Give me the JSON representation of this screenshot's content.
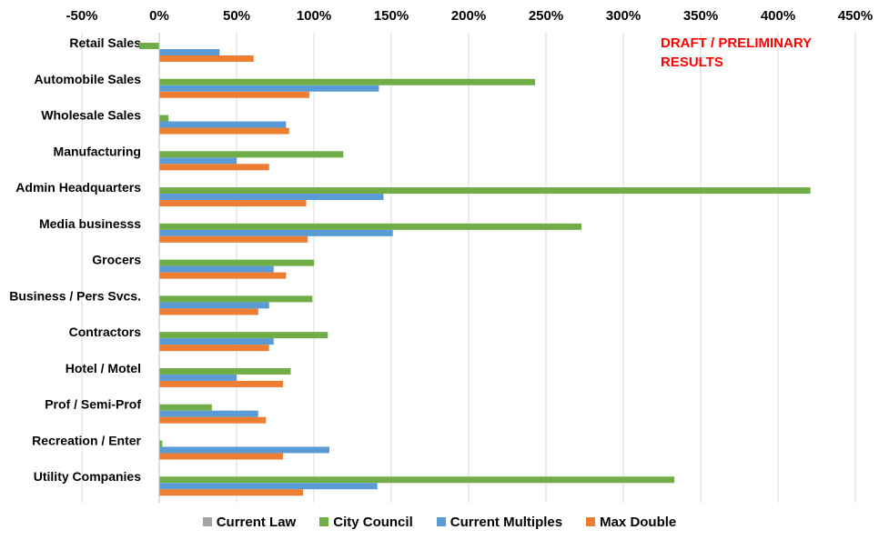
{
  "annotation": "DRAFT / PRELIMINARY RESULTS",
  "chart_data": {
    "type": "bar",
    "orientation": "horizontal",
    "x_ticks": [
      "-50%",
      "0%",
      "50%",
      "100%",
      "150%",
      "200%",
      "250%",
      "300%",
      "350%",
      "400%",
      "450%"
    ],
    "xlim": [
      -50,
      450
    ],
    "x_axis_position": "top",
    "grid": true,
    "legend_position": "bottom",
    "categories": [
      "Retail Sales",
      "Automobile Sales",
      "Wholesale Sales",
      "Manufacturing",
      "Admin Headquarters",
      "Media businesss",
      "Grocers",
      "Business / Pers Svcs.",
      "Contractors",
      "Hotel / Motel",
      "Prof / Semi-Prof",
      "Recreation / Enter",
      "Utility Companies"
    ],
    "series": [
      {
        "name": "Current Law",
        "color": "#a5a5a5",
        "values": [
          0,
          0,
          0,
          0,
          0,
          0,
          0,
          0,
          0,
          0,
          0,
          0,
          0
        ]
      },
      {
        "name": "City Council",
        "color": "#70ad47",
        "values": [
          -13,
          243,
          6,
          119,
          421,
          273,
          100,
          99,
          109,
          85,
          34,
          2,
          333
        ]
      },
      {
        "name": "Current Multiples",
        "color": "#5b9bd5",
        "values": [
          39,
          142,
          82,
          50,
          145,
          151,
          74,
          71,
          74,
          50,
          64,
          110,
          141
        ]
      },
      {
        "name": "Max Double",
        "color": "#ed7d31",
        "values": [
          61,
          97,
          84,
          71,
          95,
          96,
          82,
          64,
          71,
          80,
          69,
          80,
          93
        ]
      }
    ]
  }
}
